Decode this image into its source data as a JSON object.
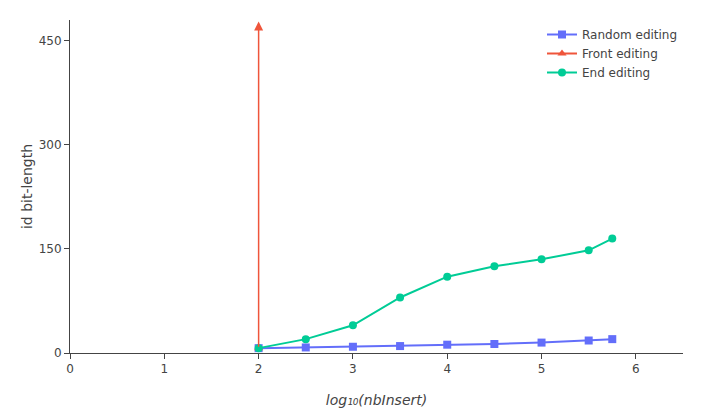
{
  "chart_data": {
    "type": "line",
    "xlabel": "log₁₀(nbInsert)",
    "ylabel": "id bit-length",
    "xlim": [
      0,
      6.5
    ],
    "ylim": [
      0,
      480
    ],
    "xticks": [
      0,
      1,
      2,
      3,
      4,
      5,
      6
    ],
    "yticks": [
      0,
      150,
      300,
      450
    ],
    "grid": false,
    "legend": "upper right",
    "series": [
      {
        "name": "Random editing",
        "marker": "square",
        "x": [
          2,
          2.5,
          3,
          3.5,
          4,
          4.5,
          5,
          5.5,
          5.75
        ],
        "values": [
          7,
          8,
          9,
          10,
          12,
          13,
          15,
          18,
          20
        ]
      },
      {
        "name": "Front editing",
        "marker": "triangle-up",
        "x": [
          2
        ],
        "values": [
          7
        ],
        "arrow_to": 478
      },
      {
        "name": "End editing",
        "marker": "circle",
        "x": [
          2,
          2.5,
          3,
          3.5,
          4,
          4.5,
          5,
          5.5,
          5.75
        ],
        "values": [
          7,
          20,
          40,
          80,
          110,
          125,
          135,
          148,
          165
        ]
      }
    ]
  }
}
